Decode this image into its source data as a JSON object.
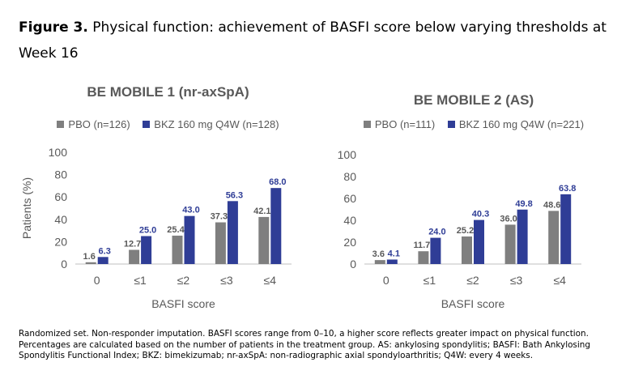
{
  "figure": {
    "label": "Figure 3.",
    "title": "Physical function: achievement of BASFI score below varying thresholds at Week 16"
  },
  "colors": {
    "pbo": "#7f7f7f",
    "bkz": "#2f3d96",
    "axis_text": "#595959"
  },
  "chart_data": [
    {
      "type": "bar",
      "title": "BE MOBILE 1 (nr-axSpA)",
      "categories": [
        "0",
        "≤1",
        "≤2",
        "≤3",
        "≤4"
      ],
      "series": [
        {
          "name": "PBO (n=126)",
          "values": [
            1.6,
            12.7,
            25.4,
            37.3,
            42.1
          ],
          "labels": [
            "1.6",
            "12.7",
            "25.4",
            "37.3",
            "42.1"
          ]
        },
        {
          "name": "BKZ 160 mg Q4W (n=128)",
          "values": [
            6.3,
            25.0,
            43.0,
            56.3,
            68.0
          ],
          "labels": [
            "6.3",
            "25.0",
            "43.0",
            "56.3",
            "68.0"
          ]
        }
      ],
      "xlabel": "BASFI score",
      "ylabel": "Patients (%)",
      "ylim": [
        0,
        100
      ],
      "yticks": [
        "0",
        "20",
        "40",
        "60",
        "80",
        "100"
      ],
      "grid": false,
      "legend_position": "top"
    },
    {
      "type": "bar",
      "title": "BE MOBILE 2 (AS)",
      "categories": [
        "0",
        "≤1",
        "≤2",
        "≤3",
        "≤4"
      ],
      "series": [
        {
          "name": "PBO (n=111)",
          "values": [
            3.6,
            11.7,
            25.2,
            36.0,
            48.6
          ],
          "labels": [
            "3.6",
            "11.7",
            "25.2",
            "36.0",
            "48.6"
          ]
        },
        {
          "name": "BKZ 160 mg Q4W (n=221)",
          "values": [
            4.1,
            24.0,
            40.3,
            49.8,
            63.8
          ],
          "labels": [
            "4.1",
            "24.0",
            "40.3",
            "49.8",
            "63.8"
          ]
        }
      ],
      "xlabel": "BASFI score",
      "ylabel": "",
      "ylim": [
        0,
        100
      ],
      "yticks": [
        "0",
        "20",
        "40",
        "60",
        "80",
        "100"
      ],
      "grid": false,
      "legend_position": "top"
    }
  ],
  "footnote": "Randomized set. Non-responder imputation. BASFI scores range from 0–10, a higher score reflects greater impact on physical function. Percentages are calculated based on the number of patients in the treatment group. AS: ankylosing spondylitis; BASFI: Bath Ankylosing Spondylitis Functional Index; BKZ: bimekizumab; nr-axSpA: non-radiographic axial spondyloarthritis; Q4W: every 4 weeks."
}
